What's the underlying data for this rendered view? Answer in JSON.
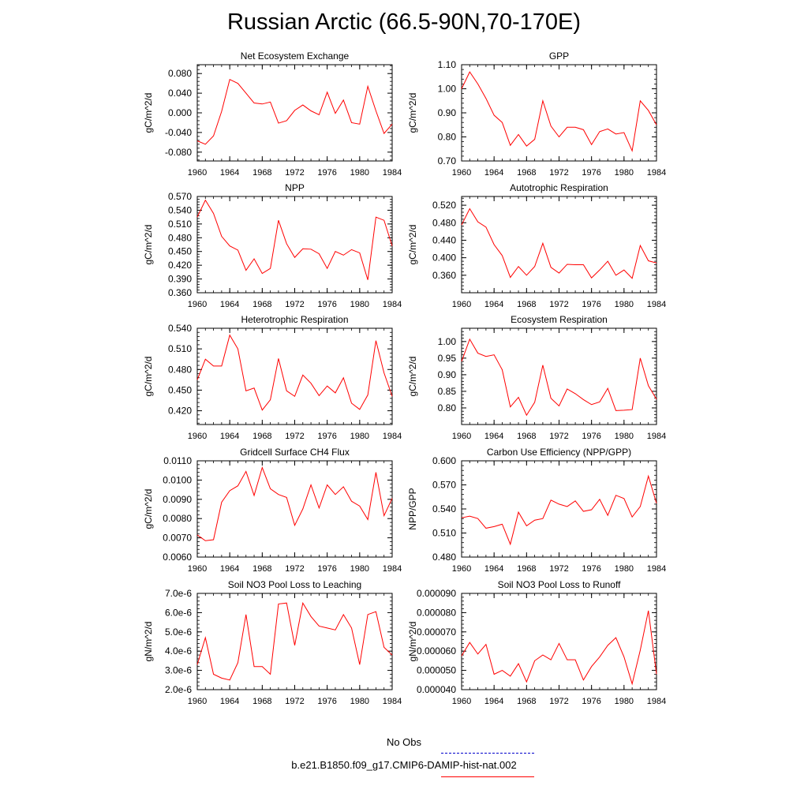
{
  "title": "Russian Arctic (66.5-90N,70-170E)",
  "colors": {
    "series": "#ff0000",
    "obs": "#0000cc",
    "axis": "#000000"
  },
  "legend": {
    "obs_label": "No Obs",
    "model_label": "b.e21.B1850.f09_g17.CMIP6-DAMIP-hist-nat.002"
  },
  "chart_data": [
    {
      "type": "line",
      "title": "Net Ecosystem Exchange",
      "ylabel": "gC/m^2/d",
      "x": [
        1960,
        1961,
        1962,
        1963,
        1964,
        1965,
        1966,
        1967,
        1968,
        1969,
        1970,
        1971,
        1972,
        1973,
        1974,
        1975,
        1976,
        1977,
        1978,
        1979,
        1980,
        1981,
        1982,
        1983,
        1984
      ],
      "series": [
        {
          "values": [
            -0.057,
            -0.064,
            -0.047,
            0.003,
            0.068,
            0.06,
            0.04,
            0.02,
            0.018,
            0.022,
            -0.021,
            -0.016,
            0.005,
            0.016,
            0.004,
            -0.004,
            0.042,
            -0.001,
            0.026,
            -0.02,
            -0.023,
            0.054,
            0.004,
            -0.042,
            -0.023
          ]
        }
      ],
      "xlim": [
        1960,
        1984
      ],
      "xticks": [
        1960,
        1964,
        1968,
        1972,
        1976,
        1980,
        1984
      ],
      "ylim": [
        -0.098,
        0.098
      ],
      "yticks": [
        -0.08,
        -0.04,
        0.0,
        0.04,
        0.08
      ],
      "ytick_labels": [
        "-0.080",
        "-0.040",
        "0.000",
        "0.040",
        "0.080"
      ]
    },
    {
      "type": "line",
      "title": "GPP",
      "ylabel": "gC/m^2/d",
      "x": [
        1960,
        1961,
        1962,
        1963,
        1964,
        1965,
        1966,
        1967,
        1968,
        1969,
        1970,
        1971,
        1972,
        1973,
        1974,
        1975,
        1976,
        1977,
        1978,
        1979,
        1980,
        1981,
        1982,
        1983,
        1984
      ],
      "series": [
        {
          "values": [
            1.0,
            1.07,
            1.02,
            0.96,
            0.89,
            0.86,
            0.765,
            0.81,
            0.762,
            0.79,
            0.95,
            0.845,
            0.8,
            0.84,
            0.84,
            0.83,
            0.768,
            0.822,
            0.833,
            0.812,
            0.818,
            0.742,
            0.95,
            0.91,
            0.85
          ]
        }
      ],
      "xlim": [
        1960,
        1984
      ],
      "xticks": [
        1960,
        1964,
        1968,
        1972,
        1976,
        1980,
        1984
      ],
      "ylim": [
        0.7,
        1.1
      ],
      "yticks": [
        0.7,
        0.8,
        0.9,
        1.0,
        1.1
      ],
      "ytick_labels": [
        "0.70",
        "0.80",
        "0.90",
        "1.00",
        "1.10"
      ]
    },
    {
      "type": "line",
      "title": "NPP",
      "ylabel": "gC/m^2/d",
      "x": [
        1960,
        1961,
        1962,
        1963,
        1964,
        1965,
        1966,
        1967,
        1968,
        1969,
        1970,
        1971,
        1972,
        1973,
        1974,
        1975,
        1976,
        1977,
        1978,
        1979,
        1980,
        1981,
        1982,
        1983,
        1984
      ],
      "series": [
        {
          "values": [
            0.525,
            0.562,
            0.533,
            0.483,
            0.462,
            0.453,
            0.409,
            0.434,
            0.402,
            0.413,
            0.518,
            0.467,
            0.437,
            0.456,
            0.455,
            0.445,
            0.413,
            0.45,
            0.442,
            0.454,
            0.447,
            0.388,
            0.525,
            0.518,
            0.462
          ]
        }
      ],
      "xlim": [
        1960,
        1984
      ],
      "xticks": [
        1960,
        1964,
        1968,
        1972,
        1976,
        1980,
        1984
      ],
      "ylim": [
        0.36,
        0.57
      ],
      "yticks": [
        0.36,
        0.39,
        0.42,
        0.45,
        0.48,
        0.51,
        0.54,
        0.57
      ],
      "ytick_labels": [
        "0.360",
        "0.390",
        "0.420",
        "0.450",
        "0.480",
        "0.510",
        "0.540",
        "0.570"
      ]
    },
    {
      "type": "line",
      "title": "Autotrophic Respiration",
      "ylabel": "gC/m^2/d",
      "x": [
        1960,
        1961,
        1962,
        1963,
        1964,
        1965,
        1966,
        1967,
        1968,
        1969,
        1970,
        1971,
        1972,
        1973,
        1974,
        1975,
        1976,
        1977,
        1978,
        1979,
        1980,
        1981,
        1982,
        1983,
        1984
      ],
      "series": [
        {
          "values": [
            0.475,
            0.512,
            0.482,
            0.47,
            0.43,
            0.405,
            0.355,
            0.38,
            0.36,
            0.38,
            0.433,
            0.378,
            0.365,
            0.385,
            0.384,
            0.384,
            0.354,
            0.372,
            0.392,
            0.36,
            0.372,
            0.353,
            0.428,
            0.393,
            0.388
          ]
        }
      ],
      "xlim": [
        1960,
        1984
      ],
      "xticks": [
        1960,
        1964,
        1968,
        1972,
        1976,
        1980,
        1984
      ],
      "ylim": [
        0.32,
        0.54
      ],
      "yticks": [
        0.36,
        0.4,
        0.44,
        0.48,
        0.52
      ],
      "ytick_labels": [
        "0.360",
        "0.400",
        "0.440",
        "0.480",
        "0.520"
      ]
    },
    {
      "type": "line",
      "title": "Heterotrophic Respiration",
      "ylabel": "gC/m^2/d",
      "x": [
        1960,
        1961,
        1962,
        1963,
        1964,
        1965,
        1966,
        1967,
        1968,
        1969,
        1970,
        1971,
        1972,
        1973,
        1974,
        1975,
        1976,
        1977,
        1978,
        1979,
        1980,
        1981,
        1982,
        1983,
        1984
      ],
      "series": [
        {
          "values": [
            0.465,
            0.495,
            0.485,
            0.485,
            0.53,
            0.51,
            0.449,
            0.453,
            0.421,
            0.436,
            0.496,
            0.449,
            0.441,
            0.472,
            0.46,
            0.442,
            0.456,
            0.446,
            0.468,
            0.431,
            0.422,
            0.443,
            0.522,
            0.475,
            0.441
          ]
        }
      ],
      "xlim": [
        1960,
        1984
      ],
      "xticks": [
        1960,
        1964,
        1968,
        1972,
        1976,
        1980,
        1984
      ],
      "ylim": [
        0.4,
        0.54
      ],
      "yticks": [
        0.42,
        0.45,
        0.48,
        0.51,
        0.54
      ],
      "ytick_labels": [
        "0.420",
        "0.450",
        "0.480",
        "0.510",
        "0.540"
      ]
    },
    {
      "type": "line",
      "title": "Ecosystem Respiration",
      "ylabel": "gC/m^2/d",
      "x": [
        1960,
        1961,
        1962,
        1963,
        1964,
        1965,
        1966,
        1967,
        1968,
        1969,
        1970,
        1971,
        1972,
        1973,
        1974,
        1975,
        1976,
        1977,
        1978,
        1979,
        1980,
        1981,
        1982,
        1983,
        1984
      ],
      "series": [
        {
          "values": [
            0.94,
            1.007,
            0.965,
            0.955,
            0.96,
            0.915,
            0.803,
            0.832,
            0.778,
            0.817,
            0.929,
            0.829,
            0.806,
            0.857,
            0.843,
            0.825,
            0.81,
            0.818,
            0.859,
            0.792,
            0.793,
            0.795,
            0.95,
            0.867,
            0.826
          ]
        }
      ],
      "xlim": [
        1960,
        1984
      ],
      "xticks": [
        1960,
        1964,
        1968,
        1972,
        1976,
        1980,
        1984
      ],
      "ylim": [
        0.75,
        1.04
      ],
      "yticks": [
        0.8,
        0.85,
        0.9,
        0.95,
        1.0
      ],
      "ytick_labels": [
        "0.80",
        "0.85",
        "0.90",
        "0.95",
        "1.00"
      ]
    },
    {
      "type": "line",
      "title": "Gridcell Surface CH4 Flux",
      "ylabel": "gC/m^2/d",
      "x": [
        1960,
        1961,
        1962,
        1963,
        1964,
        1965,
        1966,
        1967,
        1968,
        1969,
        1970,
        1971,
        1972,
        1973,
        1974,
        1975,
        1976,
        1977,
        1978,
        1979,
        1980,
        1981,
        1982,
        1983,
        1984
      ],
      "series": [
        {
          "values": [
            0.00715,
            0.00685,
            0.0069,
            0.00885,
            0.00945,
            0.0097,
            0.01045,
            0.0092,
            0.01065,
            0.00955,
            0.00925,
            0.0091,
            0.00765,
            0.0085,
            0.00975,
            0.00855,
            0.00975,
            0.00925,
            0.00965,
            0.0089,
            0.00865,
            0.00795,
            0.0104,
            0.00815,
            0.00905
          ]
        }
      ],
      "xlim": [
        1960,
        1984
      ],
      "xticks": [
        1960,
        1964,
        1968,
        1972,
        1976,
        1980,
        1984
      ],
      "ylim": [
        0.006,
        0.011
      ],
      "yticks": [
        0.006,
        0.007,
        0.008,
        0.009,
        0.01,
        0.011
      ],
      "ytick_labels": [
        "0.0060",
        "0.0070",
        "0.0080",
        "0.0090",
        "0.0100",
        "0.0110"
      ]
    },
    {
      "type": "line",
      "title": "Carbon Use Efficiency (NPP/GPP)",
      "ylabel": "NPP/GPP",
      "x": [
        1960,
        1961,
        1962,
        1963,
        1964,
        1965,
        1966,
        1967,
        1968,
        1969,
        1970,
        1971,
        1972,
        1973,
        1974,
        1975,
        1976,
        1977,
        1978,
        1979,
        1980,
        1981,
        1982,
        1983,
        1984
      ],
      "series": [
        {
          "values": [
            0.529,
            0.531,
            0.528,
            0.516,
            0.518,
            0.521,
            0.496,
            0.536,
            0.519,
            0.526,
            0.528,
            0.551,
            0.546,
            0.543,
            0.55,
            0.537,
            0.539,
            0.552,
            0.532,
            0.557,
            0.553,
            0.53,
            0.543,
            0.581,
            0.547
          ]
        }
      ],
      "xlim": [
        1960,
        1984
      ],
      "xticks": [
        1960,
        1964,
        1968,
        1972,
        1976,
        1980,
        1984
      ],
      "ylim": [
        0.48,
        0.6
      ],
      "yticks": [
        0.48,
        0.51,
        0.54,
        0.57,
        0.6
      ],
      "ytick_labels": [
        "0.480",
        "0.510",
        "0.540",
        "0.570",
        "0.600"
      ]
    },
    {
      "type": "line",
      "title": "Soil NO3 Pool Loss to Leaching",
      "ylabel": "gN/m^2/d",
      "x": [
        1960,
        1961,
        1962,
        1963,
        1964,
        1965,
        1966,
        1967,
        1968,
        1969,
        1970,
        1971,
        1972,
        1973,
        1974,
        1975,
        1976,
        1977,
        1978,
        1979,
        1980,
        1981,
        1982,
        1983,
        1984
      ],
      "series": [
        {
          "values": [
            3.3e-06,
            4.7e-06,
            2.8e-06,
            2.6e-06,
            2.5e-06,
            3.4e-06,
            5.9e-06,
            3.2e-06,
            3.2e-06,
            2.8e-06,
            6.45e-06,
            6.5e-06,
            4.3e-06,
            6.5e-06,
            5.8e-06,
            5.3e-06,
            5.2e-06,
            5.1e-06,
            5.9e-06,
            5.2e-06,
            3.3e-06,
            5.9e-06,
            6.05e-06,
            4.2e-06,
            3.8e-06
          ]
        }
      ],
      "xlim": [
        1960,
        1984
      ],
      "xticks": [
        1960,
        1964,
        1968,
        1972,
        1976,
        1980,
        1984
      ],
      "ylim": [
        2e-06,
        7e-06
      ],
      "yticks": [
        2e-06,
        3e-06,
        4e-06,
        5e-06,
        6e-06,
        7e-06
      ],
      "ytick_labels": [
        "2.0e-6",
        "3.0e-6",
        "4.0e-6",
        "5.0e-6",
        "6.0e-6",
        "7.0e-6"
      ]
    },
    {
      "type": "line",
      "title": "Soil NO3 Pool Loss to Runoff",
      "ylabel": "gN/m^2/d",
      "x": [
        1960,
        1961,
        1962,
        1963,
        1964,
        1965,
        1966,
        1967,
        1968,
        1969,
        1970,
        1971,
        1972,
        1973,
        1974,
        1975,
        1976,
        1977,
        1978,
        1979,
        1980,
        1981,
        1982,
        1983,
        1984
      ],
      "series": [
        {
          "values": [
            5.75e-05,
            6.45e-05,
            5.85e-05,
            6.35e-05,
            4.8e-05,
            5e-05,
            4.7e-05,
            5.35e-05,
            4.4e-05,
            5.5e-05,
            5.8e-05,
            5.55e-05,
            6.4e-05,
            5.55e-05,
            5.55e-05,
            4.5e-05,
            5.2e-05,
            5.7e-05,
            6.3e-05,
            6.7e-05,
            5.7e-05,
            4.3e-05,
            6.05e-05,
            8.1e-05,
            4.8e-05
          ]
        }
      ],
      "xlim": [
        1960,
        1984
      ],
      "xticks": [
        1960,
        1964,
        1968,
        1972,
        1976,
        1980,
        1984
      ],
      "ylim": [
        4e-05,
        9e-05
      ],
      "yticks": [
        4e-05,
        5e-05,
        6e-05,
        7e-05,
        8e-05,
        9e-05
      ],
      "ytick_labels": [
        "0.000040",
        "0.000050",
        "0.000060",
        "0.000070",
        "0.000080",
        "0.000090"
      ]
    }
  ]
}
